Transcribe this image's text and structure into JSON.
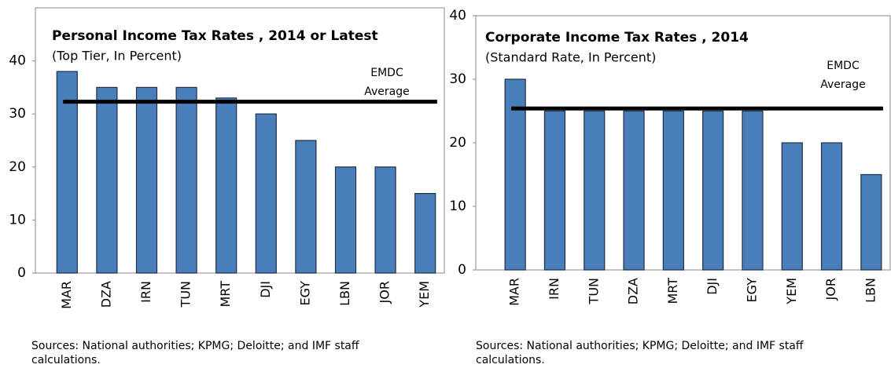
{
  "chart_data": [
    {
      "type": "bar",
      "title": "Personal Income Tax Rates , 2014 or Latest",
      "subtitle": "(Top Tier, In Percent)",
      "categories": [
        "MAR",
        "DZA",
        "IRN",
        "TUN",
        "MRT",
        "DJI",
        "EGY",
        "LBN",
        "JOR",
        "YEM"
      ],
      "values": [
        38,
        35,
        35,
        35,
        33,
        30,
        25,
        20,
        20,
        15
      ],
      "color": "#4a7ebb",
      "ylim": [
        0,
        50
      ],
      "yticks": [
        0,
        10,
        20,
        30,
        40
      ],
      "average": 32.3,
      "average_label": [
        "EMDC",
        "Average"
      ],
      "source": "Sources: National authorities; KPMG; Deloitte; and IMF staff calculations."
    },
    {
      "type": "bar",
      "title": "Corporate Income Tax Rates , 2014",
      "subtitle": "(Standard Rate, In Percent)",
      "categories": [
        "MAR",
        "IRN",
        "TUN",
        "DZA",
        "MRT",
        "DJI",
        "EGY",
        "YEM",
        "JOR",
        "LBN"
      ],
      "values": [
        30,
        25,
        25,
        25,
        25,
        25,
        25,
        20,
        20,
        15
      ],
      "color": "#4a7ebb",
      "ylim": [
        0,
        40
      ],
      "yticks": [
        0,
        10,
        20,
        30,
        40
      ],
      "average": 25.4,
      "average_label": [
        "EMDC",
        "Average"
      ],
      "source": "Sources: National authorities; KPMG; Deloitte; and IMF staff calculations."
    }
  ]
}
